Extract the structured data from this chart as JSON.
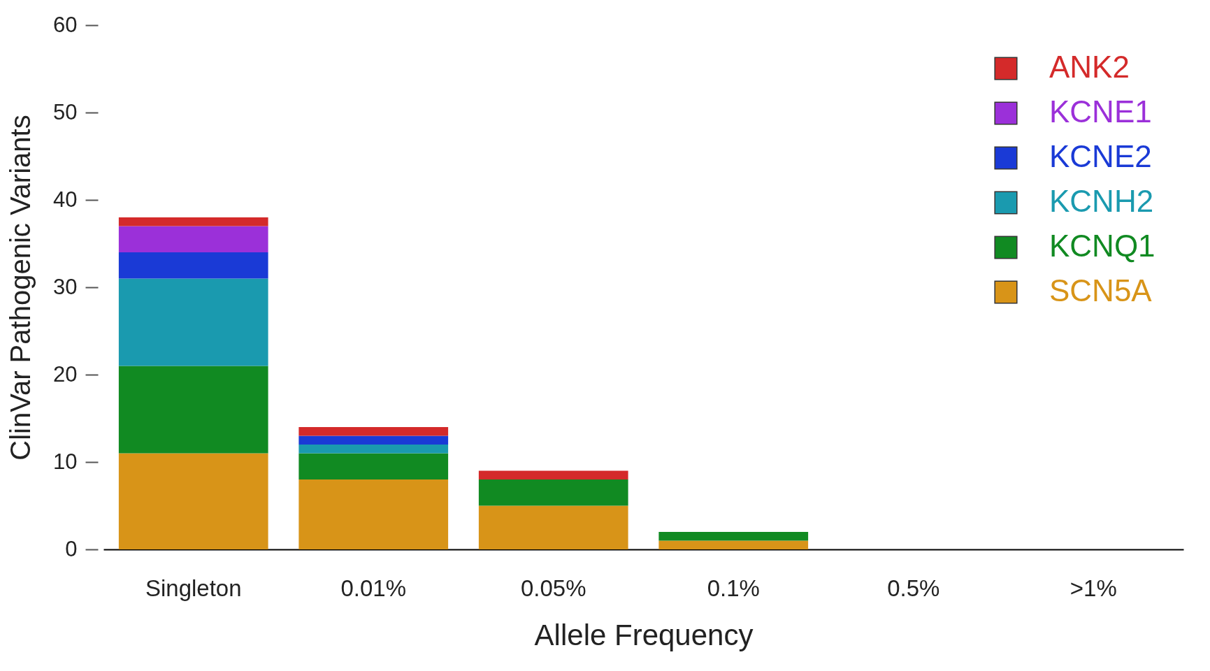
{
  "chart_data": {
    "type": "bar",
    "stacked": true,
    "xlabel": "Allele Frequency",
    "ylabel": "ClinVar Pathogenic Variants",
    "categories": [
      "Singleton",
      "0.01%",
      "0.05%",
      "0.1%",
      "0.5%",
      ">1%"
    ],
    "ylim": [
      0,
      60
    ],
    "yticks": [
      0,
      10,
      20,
      30,
      40,
      50,
      60
    ],
    "grid": false,
    "legend": "top right",
    "series": [
      {
        "name": "SCN5A",
        "color": "#d89418",
        "values": [
          11,
          8,
          5,
          1,
          0,
          0
        ]
      },
      {
        "name": "KCNQ1",
        "color": "#118a22",
        "values": [
          10,
          3,
          3,
          1,
          0,
          0
        ]
      },
      {
        "name": "KCNH2",
        "color": "#1a9aaf",
        "values": [
          10,
          1,
          0,
          0,
          0,
          0
        ]
      },
      {
        "name": "KCNE2",
        "color": "#1a3ad6",
        "values": [
          3,
          1,
          0,
          0,
          0,
          0
        ]
      },
      {
        "name": "KCNE1",
        "color": "#9b30d9",
        "values": [
          3,
          0,
          0,
          0,
          0,
          0
        ]
      },
      {
        "name": "ANK2",
        "color": "#d42a2a",
        "values": [
          1,
          1,
          1,
          0,
          0,
          0
        ]
      }
    ]
  }
}
